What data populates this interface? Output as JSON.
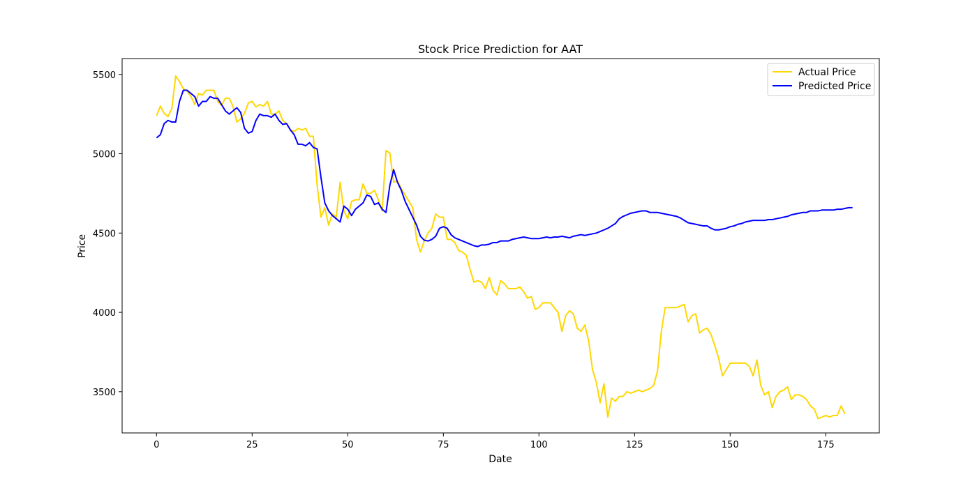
{
  "chart_data": {
    "type": "line",
    "title": "Stock Price Prediction for AAT",
    "xlabel": "Date",
    "ylabel": "Price",
    "xlim": [
      -9,
      189
    ],
    "ylim": [
      3240,
      5600
    ],
    "xticks": [
      0,
      25,
      50,
      75,
      100,
      125,
      150,
      175
    ],
    "yticks": [
      3500,
      4000,
      4500,
      5000,
      5500
    ],
    "grid": false,
    "legend_position": "top-right",
    "series": [
      {
        "name": "Actual Price",
        "color": "#FFD700",
        "x_start": 0,
        "values": [
          5240,
          5300,
          5255,
          5235,
          5285,
          5490,
          5455,
          5410,
          5395,
          5360,
          5310,
          5380,
          5370,
          5400,
          5400,
          5400,
          5330,
          5305,
          5350,
          5350,
          5300,
          5200,
          5220,
          5255,
          5320,
          5330,
          5295,
          5310,
          5300,
          5330,
          5250,
          5250,
          5270,
          5210,
          5190,
          5150,
          5140,
          5160,
          5150,
          5160,
          5110,
          5110,
          4800,
          4600,
          4660,
          4550,
          4620,
          4600,
          4820,
          4640,
          4590,
          4700,
          4710,
          4710,
          4810,
          4750,
          4750,
          4770,
          4710,
          4640,
          5020,
          5005,
          4820,
          4830,
          4780,
          4740,
          4700,
          4660,
          4460,
          4380,
          4450,
          4500,
          4530,
          4620,
          4600,
          4600,
          4460,
          4460,
          4440,
          4390,
          4380,
          4360,
          4270,
          4190,
          4200,
          4190,
          4150,
          4220,
          4140,
          4110,
          4200,
          4180,
          4150,
          4150,
          4150,
          4160,
          4130,
          4090,
          4100,
          4020,
          4030,
          4060,
          4060,
          4060,
          4030,
          4000,
          3880,
          3980,
          4010,
          3990,
          3900,
          3880,
          3920,
          3820,
          3640,
          3560,
          3430,
          3550,
          3340,
          3460,
          3440,
          3470,
          3470,
          3500,
          3490,
          3500,
          3510,
          3500,
          3510,
          3520,
          3540,
          3630,
          3880,
          4030,
          4030,
          4030,
          4030,
          4040,
          4050,
          3940,
          3980,
          3990,
          3870,
          3890,
          3900,
          3860,
          3790,
          3710,
          3600,
          3640,
          3680,
          3680,
          3680,
          3680,
          3680,
          3660,
          3600,
          3700,
          3540,
          3480,
          3500,
          3400,
          3470,
          3500,
          3510,
          3530,
          3450,
          3480,
          3480,
          3470,
          3450,
          3410,
          3390,
          3330,
          3340,
          3350,
          3340,
          3350,
          3350,
          3410,
          3360
        ]
      },
      {
        "name": "Predicted Price",
        "color": "#0000FF",
        "x_start": 0,
        "values": [
          5100,
          5120,
          5190,
          5210,
          5200,
          5200,
          5330,
          5400,
          5400,
          5380,
          5360,
          5300,
          5330,
          5330,
          5360,
          5350,
          5350,
          5310,
          5270,
          5250,
          5270,
          5290,
          5260,
          5160,
          5130,
          5140,
          5210,
          5250,
          5240,
          5240,
          5230,
          5250,
          5210,
          5185,
          5190,
          5150,
          5120,
          5060,
          5060,
          5050,
          5070,
          5040,
          5030,
          4850,
          4690,
          4640,
          4610,
          4590,
          4570,
          4670,
          4650,
          4610,
          4650,
          4670,
          4690,
          4740,
          4730,
          4680,
          4690,
          4650,
          4630,
          4800,
          4900,
          4820,
          4770,
          4700,
          4650,
          4600,
          4550,
          4480,
          4455,
          4450,
          4460,
          4480,
          4530,
          4540,
          4530,
          4490,
          4470,
          4460,
          4450,
          4440,
          4430,
          4420,
          4415,
          4425,
          4425,
          4430,
          4440,
          4440,
          4450,
          4450,
          4450,
          4460,
          4465,
          4470,
          4475,
          4470,
          4465,
          4465,
          4465,
          4470,
          4475,
          4470,
          4475,
          4475,
          4480,
          4475,
          4470,
          4480,
          4485,
          4490,
          4485,
          4490,
          4495,
          4500,
          4510,
          4520,
          4530,
          4545,
          4560,
          4590,
          4605,
          4615,
          4625,
          4630,
          4635,
          4640,
          4640,
          4630,
          4630,
          4630,
          4625,
          4620,
          4615,
          4610,
          4605,
          4595,
          4580,
          4565,
          4560,
          4555,
          4550,
          4545,
          4545,
          4530,
          4520,
          4520,
          4525,
          4530,
          4540,
          4545,
          4555,
          4560,
          4570,
          4575,
          4580,
          4580,
          4580,
          4580,
          4585,
          4585,
          4590,
          4595,
          4600,
          4605,
          4615,
          4620,
          4625,
          4630,
          4630,
          4640,
          4640,
          4640,
          4645,
          4645,
          4645,
          4645,
          4650,
          4650,
          4655,
          4660,
          4660
        ]
      }
    ]
  }
}
